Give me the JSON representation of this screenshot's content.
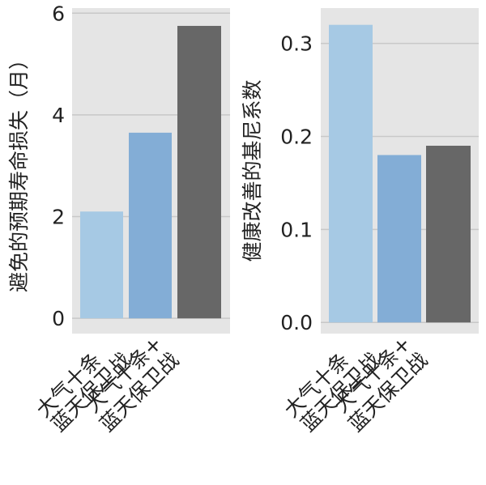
{
  "chart_data": [
    {
      "type": "bar",
      "categories": [
        "大气十条",
        "蓝天保卫战",
        "大气十条+蓝天保卫战"
      ],
      "category_lines": [
        [
          "大气十条"
        ],
        [
          "蓝天保卫战"
        ],
        [
          "大气十条+",
          "蓝天保卫战"
        ]
      ],
      "values": [
        2.1,
        3.65,
        5.75
      ],
      "ylabel": "避免的预期寿命损失（月）",
      "ylim": [
        -0.3,
        6.1
      ],
      "yticks": [
        "0",
        "2",
        "4",
        "6"
      ],
      "ytick_values": [
        0,
        2,
        4,
        6
      ],
      "grid": true,
      "bar_colors": [
        "#a6c9e4",
        "#83add6",
        "#676767"
      ]
    },
    {
      "type": "bar",
      "categories": [
        "大气十条",
        "蓝天保卫战",
        "大气十条+蓝天保卫战"
      ],
      "category_lines": [
        [
          "大气十条"
        ],
        [
          "蓝天保卫战"
        ],
        [
          "大气十条+",
          "蓝天保卫战"
        ]
      ],
      "values": [
        0.32,
        0.18,
        0.19
      ],
      "ylabel": "健康改善的基尼系数",
      "ylim": [
        -0.012,
        0.338
      ],
      "yticks": [
        "0.0",
        "0.1",
        "0.2",
        "0.3"
      ],
      "ytick_values": [
        0.0,
        0.1,
        0.2,
        0.3
      ],
      "grid": true,
      "bar_colors": [
        "#a6c9e4",
        "#83add6",
        "#676767"
      ]
    }
  ],
  "style": {
    "plot_background": "#e5e5e5",
    "grid_color": "#c8c8c8",
    "text_color": "#222222"
  }
}
